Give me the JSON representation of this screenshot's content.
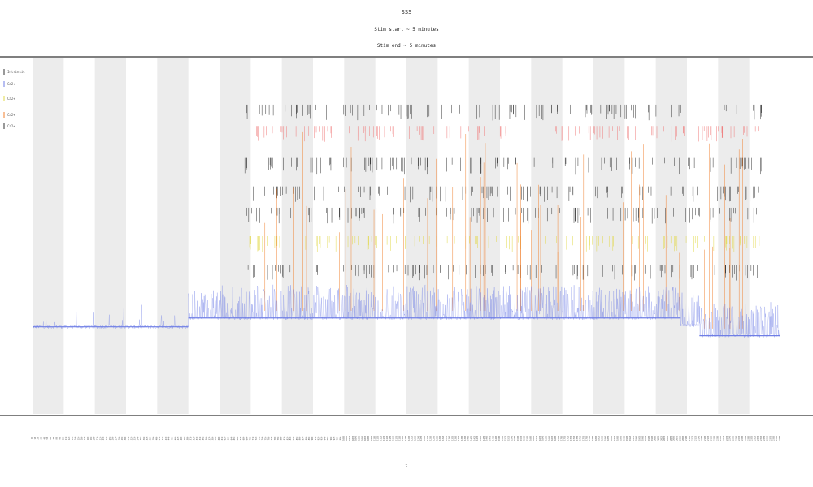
{
  "chart_data": {
    "type": "line",
    "title_lines": [
      "SSS",
      "Stim start ~ 5 minutes",
      "Stim end ~ 5 minutes"
    ],
    "legend": [
      "Intrinsic",
      "Ca2+",
      "Ca2+",
      "Ca2+",
      "Ca2+"
    ],
    "xlabel": "t",
    "colors": {
      "band": "#ececec",
      "trace": "#6f7ee6",
      "stim": "#f07f2c",
      "events_dark": "#333333",
      "events_yellow": "#e2d84a",
      "events_red": "#ef7b7b",
      "axis": "#333333"
    },
    "x_range": [
      0,
      2400
    ],
    "y_range": [
      0,
      1
    ],
    "shaded_intervals": [
      [
        0,
        100
      ],
      [
        200,
        300
      ],
      [
        400,
        500
      ],
      [
        600,
        700
      ],
      [
        800,
        900
      ],
      [
        1000,
        1100
      ],
      [
        1200,
        1300
      ],
      [
        1400,
        1500
      ],
      [
        1600,
        1700
      ],
      [
        1800,
        1900
      ],
      [
        2000,
        2100
      ],
      [
        2200,
        2300
      ]
    ],
    "baseline_segments": [
      {
        "x": [
          0,
          500
        ],
        "y": 0.245
      },
      {
        "x": [
          500,
          2080
        ],
        "y": 0.27
      },
      {
        "x": [
          2080,
          2140
        ],
        "y": 0.25
      },
      {
        "x": [
          2140,
          2400
        ],
        "y": 0.22
      }
    ],
    "activity_window": [
      500,
      2400
    ],
    "stim_window": [
      680,
      2340
    ],
    "event_rows": [
      {
        "name": "top",
        "color": "events_dark",
        "y": 0.87
      },
      {
        "name": "red",
        "color": "events_red",
        "y": 0.81
      },
      {
        "name": "mid1",
        "color": "events_dark",
        "y": 0.72
      },
      {
        "name": "mid2",
        "color": "events_dark",
        "y": 0.64
      },
      {
        "name": "mid3",
        "color": "events_dark",
        "y": 0.58
      },
      {
        "name": "yellow",
        "color": "events_yellow",
        "y": 0.5
      },
      {
        "name": "low",
        "color": "events_dark",
        "y": 0.42
      }
    ]
  }
}
